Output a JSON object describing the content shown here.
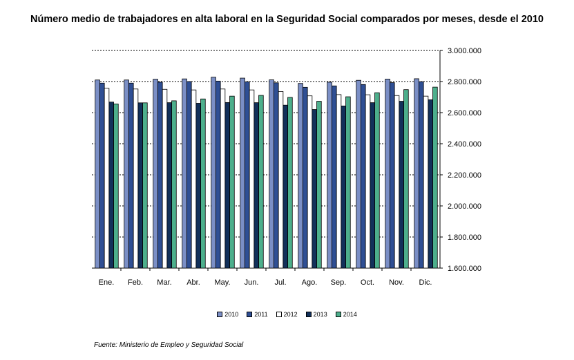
{
  "chart_data": {
    "type": "bar",
    "title": "Número medio de trabajadores en alta laboral en la Seguridad Social comparados por meses, desde el 2010",
    "categories": [
      "Ene.",
      "Feb.",
      "Mar.",
      "Abr.",
      "May.",
      "Jun.",
      "Jul.",
      "Ago.",
      "Sep.",
      "Oct.",
      "Nov.",
      "Dic."
    ],
    "series": [
      {
        "name": "2010",
        "color": "#7b8fc6",
        "values": [
          2810000,
          2810000,
          2815000,
          2817000,
          2828000,
          2822000,
          2811000,
          2788000,
          2796000,
          2808000,
          2816000,
          2818000
        ]
      },
      {
        "name": "2011",
        "color": "#2f4f94",
        "values": [
          2790000,
          2790000,
          2796000,
          2800000,
          2803000,
          2798000,
          2792000,
          2763000,
          2772000,
          2781000,
          2793000,
          2799000
        ]
      },
      {
        "name": "2012",
        "color": "#ffffff",
        "values": [
          2757000,
          2752000,
          2750000,
          2746000,
          2752000,
          2746000,
          2736000,
          2708000,
          2716000,
          2715000,
          2710000,
          2706000
        ]
      },
      {
        "name": "2013",
        "color": "#12305a",
        "values": [
          2668000,
          2663000,
          2664000,
          2660000,
          2665000,
          2664000,
          2648000,
          2620000,
          2643000,
          2664000,
          2673000,
          2683000
        ]
      },
      {
        "name": "2014",
        "color": "#4daf8c",
        "values": [
          2656000,
          2663000,
          2676000,
          2688000,
          2706000,
          2711000,
          2698000,
          2673000,
          2702000,
          2728000,
          2748000,
          2764000
        ]
      }
    ],
    "yticks": [
      "1.600.000",
      "1.800.000",
      "2.000.000",
      "2.200.000",
      "2.400.000",
      "2.600.000",
      "2.800.000",
      "3.000.000"
    ],
    "ylim": [
      1600000,
      3000000
    ],
    "grid": true,
    "legend_position": "bottom",
    "source": "Fuente: Ministerio de Empleo y Seguridad Social"
  }
}
